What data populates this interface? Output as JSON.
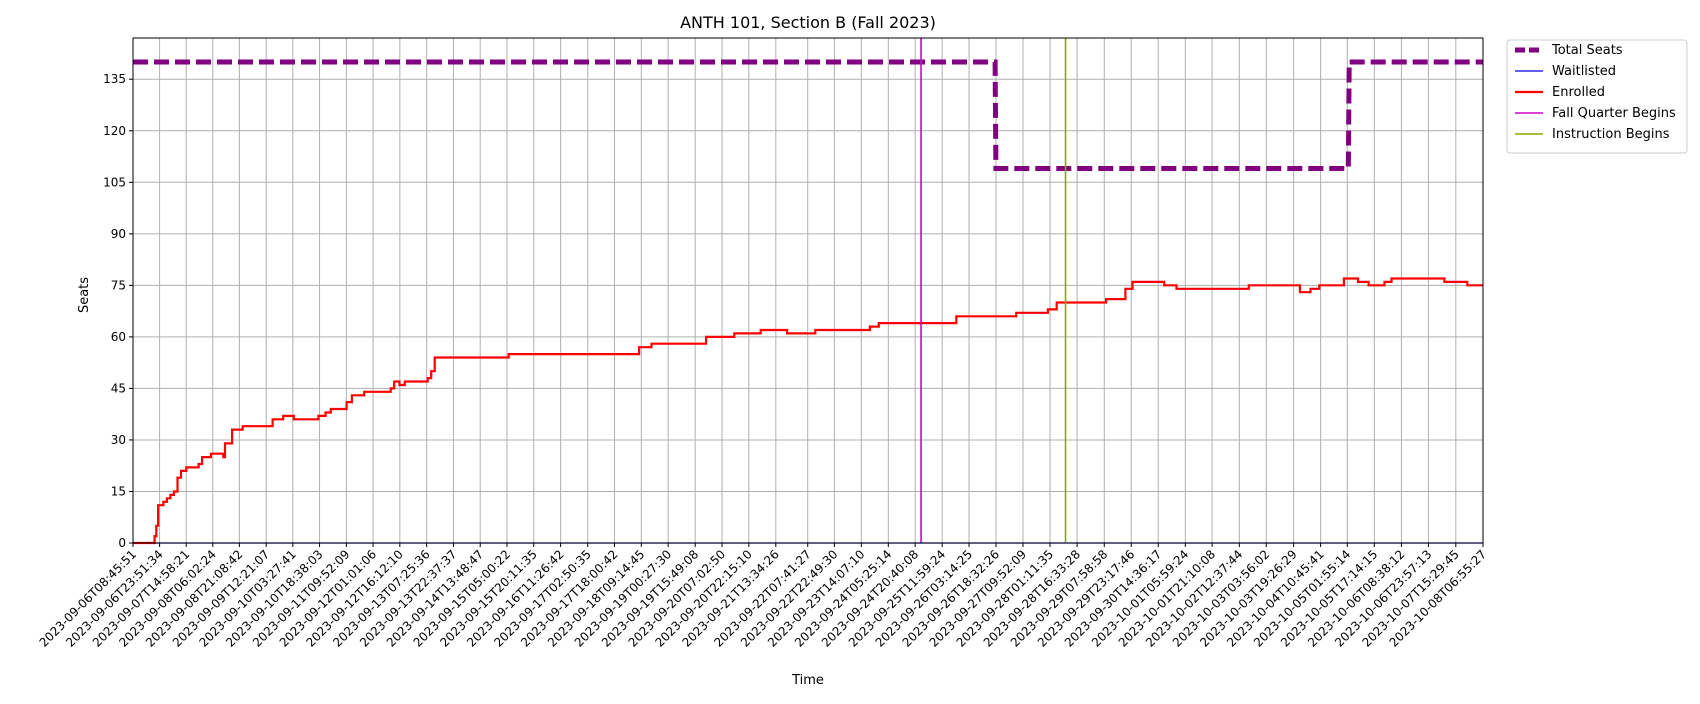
{
  "chart_data": {
    "type": "line",
    "title": "ANTH 101, Section B (Fall 2023)",
    "xlabel": "Time",
    "ylabel": "Seats",
    "grid": true,
    "legend_placement": "outside-top-right",
    "xlim": [
      "2023-09-06T08:45:51",
      "2023-10-08T06:55:27"
    ],
    "ylim": [
      0,
      147
    ],
    "yticks": [
      0,
      15,
      30,
      45,
      60,
      75,
      90,
      105,
      120,
      135
    ],
    "xticks": [
      "2023-09-06T08:45:51",
      "2023-09-06T23:51:34",
      "2023-09-07T14:58:21",
      "2023-09-08T06:02:24",
      "2023-09-08T21:08:42",
      "2023-09-09T12:21:07",
      "2023-09-10T03:27:41",
      "2023-09-10T18:38:03",
      "2023-09-11T09:52:09",
      "2023-09-12T01:01:06",
      "2023-09-12T16:12:10",
      "2023-09-13T07:25:36",
      "2023-09-13T22:37:37",
      "2023-09-14T13:48:47",
      "2023-09-15T05:00:22",
      "2023-09-15T20:11:35",
      "2023-09-16T11:26:42",
      "2023-09-17T02:50:35",
      "2023-09-17T18:00:42",
      "2023-09-18T09:14:45",
      "2023-09-19T00:27:30",
      "2023-09-19T15:49:08",
      "2023-09-20T07:02:50",
      "2023-09-20T22:15:10",
      "2023-09-21T13:34:26",
      "2023-09-22T07:41:27",
      "2023-09-22T22:49:30",
      "2023-09-23T14:07:10",
      "2023-09-24T05:25:14",
      "2023-09-24T20:40:08",
      "2023-09-25T11:59:24",
      "2023-09-26T03:14:25",
      "2023-09-26T18:32:26",
      "2023-09-27T09:52:09",
      "2023-09-28T01:11:35",
      "2023-09-28T16:33:28",
      "2023-09-29T07:58:58",
      "2023-09-29T23:17:46",
      "2023-09-30T14:36:17",
      "2023-10-01T05:59:24",
      "2023-10-01T21:10:08",
      "2023-10-02T12:37:44",
      "2023-10-03T03:56:02",
      "2023-10-03T19:26:29",
      "2023-10-04T10:45:41",
      "2023-10-05T01:55:14",
      "2023-10-05T17:14:15",
      "2023-10-06T08:38:12",
      "2023-10-06T23:57:13",
      "2023-10-07T15:29:45",
      "2023-10-08T06:55:27"
    ],
    "series": [
      {
        "name": "Total Seats",
        "color": "#800080",
        "style": "dashed",
        "points": [
          [
            "2023-09-06T08:45:51",
            140
          ],
          [
            "2023-09-26T18:00:00",
            140
          ],
          [
            "2023-09-26T18:30:00",
            109
          ],
          [
            "2023-10-05T02:30:00",
            109
          ],
          [
            "2023-10-05T03:00:00",
            140
          ],
          [
            "2023-10-08T06:55:27",
            140
          ]
        ]
      },
      {
        "name": "Waitlisted",
        "color": "#0000ff",
        "style": "solid",
        "points": [
          [
            "2023-09-06T08:45:51",
            0
          ],
          [
            "2023-10-08T06:55:27",
            0
          ]
        ]
      },
      {
        "name": "Enrolled",
        "color": "#ff0000",
        "style": "solid",
        "points": [
          [
            "2023-09-06T08:45:51",
            0
          ],
          [
            "2023-09-06T20:00:00",
            0
          ],
          [
            "2023-09-06T21:00:00",
            2
          ],
          [
            "2023-09-06T22:00:00",
            5
          ],
          [
            "2023-09-06T23:00:00",
            11
          ],
          [
            "2023-09-07T02:00:00",
            12
          ],
          [
            "2023-09-07T04:00:00",
            13
          ],
          [
            "2023-09-07T06:00:00",
            14
          ],
          [
            "2023-09-07T08:00:00",
            15
          ],
          [
            "2023-09-07T10:00:00",
            19
          ],
          [
            "2023-09-07T12:00:00",
            21
          ],
          [
            "2023-09-07T15:00:00",
            22
          ],
          [
            "2023-09-07T22:00:00",
            23
          ],
          [
            "2023-09-08T00:00:00",
            25
          ],
          [
            "2023-09-08T05:00:00",
            26
          ],
          [
            "2023-09-08T12:00:00",
            25
          ],
          [
            "2023-09-08T13:00:00",
            29
          ],
          [
            "2023-09-08T17:00:00",
            33
          ],
          [
            "2023-09-08T23:00:00",
            34
          ],
          [
            "2023-09-09T16:00:00",
            36
          ],
          [
            "2023-09-09T22:00:00",
            37
          ],
          [
            "2023-09-10T04:00:00",
            36
          ],
          [
            "2023-09-10T18:00:00",
            37
          ],
          [
            "2023-09-10T22:00:00",
            38
          ],
          [
            "2023-09-11T01:00:00",
            39
          ],
          [
            "2023-09-11T10:00:00",
            41
          ],
          [
            "2023-09-11T13:00:00",
            43
          ],
          [
            "2023-09-11T20:00:00",
            44
          ],
          [
            "2023-09-12T11:00:00",
            45
          ],
          [
            "2023-09-12T13:00:00",
            47
          ],
          [
            "2023-09-12T16:00:00",
            46
          ],
          [
            "2023-09-12T19:00:00",
            47
          ],
          [
            "2023-09-13T08:00:00",
            48
          ],
          [
            "2023-09-13T10:00:00",
            50
          ],
          [
            "2023-09-13T12:00:00",
            54
          ],
          [
            "2023-09-15T06:00:00",
            55
          ],
          [
            "2023-09-18T08:00:00",
            57
          ],
          [
            "2023-09-18T15:00:00",
            58
          ],
          [
            "2023-09-19T22:00:00",
            60
          ],
          [
            "2023-09-20T14:00:00",
            61
          ],
          [
            "2023-09-21T05:00:00",
            62
          ],
          [
            "2023-09-21T20:00:00",
            61
          ],
          [
            "2023-09-22T12:00:00",
            62
          ],
          [
            "2023-09-23T19:00:00",
            63
          ],
          [
            "2023-09-24T00:00:00",
            64
          ],
          [
            "2023-09-25T20:00:00",
            66
          ],
          [
            "2023-09-27T06:00:00",
            67
          ],
          [
            "2023-09-28T00:00:00",
            68
          ],
          [
            "2023-09-28T05:00:00",
            70
          ],
          [
            "2023-09-29T09:00:00",
            71
          ],
          [
            "2023-09-29T20:00:00",
            74
          ],
          [
            "2023-09-30T00:00:00",
            76
          ],
          [
            "2023-09-30T18:00:00",
            75
          ],
          [
            "2023-10-01T01:00:00",
            74
          ],
          [
            "2023-10-02T18:00:00",
            75
          ],
          [
            "2023-10-03T23:00:00",
            73
          ],
          [
            "2023-10-04T05:00:00",
            74
          ],
          [
            "2023-10-04T10:00:00",
            75
          ],
          [
            "2023-10-05T00:00:00",
            77
          ],
          [
            "2023-10-05T08:00:00",
            76
          ],
          [
            "2023-10-05T14:00:00",
            75
          ],
          [
            "2023-10-05T23:00:00",
            76
          ],
          [
            "2023-10-06T03:00:00",
            77
          ],
          [
            "2023-10-07T09:00:00",
            76
          ],
          [
            "2023-10-07T22:00:00",
            75
          ],
          [
            "2023-10-08T06:55:27",
            75
          ]
        ]
      }
    ],
    "vlines": [
      {
        "name": "Fall Quarter Begins",
        "color": "#cc00cc",
        "x": "2023-09-25T00:00:00"
      },
      {
        "name": "Instruction Begins",
        "color": "#88aa00",
        "x": "2023-09-28T10:00:00"
      }
    ]
  }
}
